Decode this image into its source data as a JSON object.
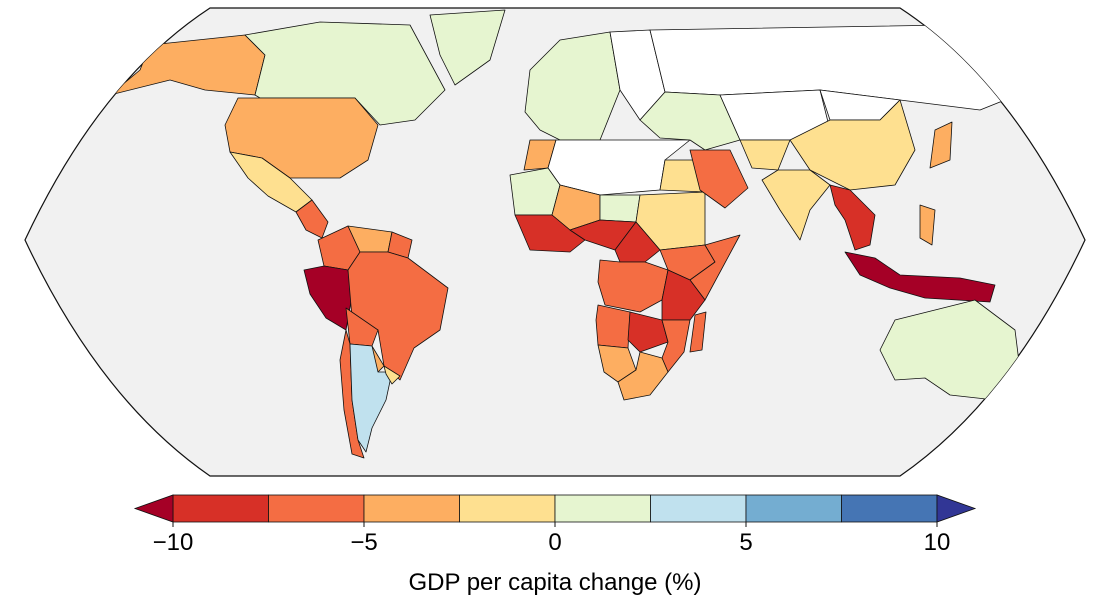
{
  "colors": {
    "ocean": "#f1f1f1",
    "no_data": "#ffffff",
    "border": "#111111"
  },
  "colorbar": {
    "label": "GDP per capita change (%)",
    "min": -10,
    "max": 10,
    "extend": "both",
    "bins": [
      {
        "from": -7.5,
        "to": -10,
        "color": "#d73027",
        "note": "bin -10 to -7.5"
      },
      {
        "from": -7.5,
        "to": -5,
        "color": "#f46d43"
      },
      {
        "from": -5,
        "to": -2.5,
        "color": "#fdae61"
      },
      {
        "from": -2.5,
        "to": 0,
        "color": "#fee090"
      },
      {
        "from": 0,
        "to": 2.5,
        "color": "#e6f5d0"
      },
      {
        "from": 2.5,
        "to": 5,
        "color": "#c0e1ee"
      },
      {
        "from": 5,
        "to": 7.5,
        "color": "#74add1"
      },
      {
        "from": 7.5,
        "to": 10,
        "color": "#4575b4"
      }
    ],
    "under_color": "#a50026",
    "over_color": "#313695",
    "ticks": [
      {
        "value": -10,
        "label": "−10"
      },
      {
        "value": -5,
        "label": "−5"
      },
      {
        "value": 0,
        "label": "0"
      },
      {
        "value": 5,
        "label": "5"
      },
      {
        "value": 10,
        "label": "10"
      }
    ]
  },
  "regions": [
    {
      "name": "Alaska",
      "value": -4
    },
    {
      "name": "Canada",
      "value": 1
    },
    {
      "name": "Greenland",
      "value": 1
    },
    {
      "name": "United States",
      "value": -4
    },
    {
      "name": "Mexico",
      "value": -2
    },
    {
      "name": "Central America",
      "value": -7
    },
    {
      "name": "Colombia",
      "value": -7
    },
    {
      "name": "Venezuela",
      "value": -4
    },
    {
      "name": "Guianas",
      "value": -7
    },
    {
      "name": "Peru",
      "value": -11
    },
    {
      "name": "Brazil",
      "value": -7
    },
    {
      "name": "Bolivia",
      "value": -6
    },
    {
      "name": "Paraguay",
      "value": -4
    },
    {
      "name": "Chile",
      "value": -6
    },
    {
      "name": "Argentina",
      "value": 3
    },
    {
      "name": "Uruguay",
      "value": -1
    },
    {
      "name": "Western Europe",
      "value": 1
    },
    {
      "name": "Eastern Europe",
      "value": null
    },
    {
      "name": "Russia",
      "value": null
    },
    {
      "name": "Morocco",
      "value": -4
    },
    {
      "name": "Sahara",
      "value": null
    },
    {
      "name": "Egypt",
      "value": -2
    },
    {
      "name": "Mauritania",
      "value": 1
    },
    {
      "name": "Mali",
      "value": -4
    },
    {
      "name": "Niger",
      "value": 1
    },
    {
      "name": "Sudan",
      "value": -2
    },
    {
      "name": "West Africa Coast",
      "value": -9
    },
    {
      "name": "Nigeria",
      "value": -8
    },
    {
      "name": "Central Africa",
      "value": -8
    },
    {
      "name": "Ethiopia",
      "value": -6
    },
    {
      "name": "Somalia",
      "value": -6
    },
    {
      "name": "DR Congo",
      "value": -7
    },
    {
      "name": "Kenya Tanzania",
      "value": -9
    },
    {
      "name": "Angola",
      "value": -7
    },
    {
      "name": "Zambia",
      "value": -8
    },
    {
      "name": "Mozambique",
      "value": -7
    },
    {
      "name": "Namibia",
      "value": -4
    },
    {
      "name": "South Africa",
      "value": -4
    },
    {
      "name": "Madagascar",
      "value": -6
    },
    {
      "name": "Middle East",
      "value": 1
    },
    {
      "name": "Saudi Arabia",
      "value": -6
    },
    {
      "name": "Central Asia",
      "value": null
    },
    {
      "name": "Mongolia",
      "value": null
    },
    {
      "name": "China",
      "value": -2
    },
    {
      "name": "India",
      "value": -2
    },
    {
      "name": "Pakistan",
      "value": -2
    },
    {
      "name": "Southeast Asia",
      "value": -8
    },
    {
      "name": "Indonesia",
      "value": -11
    },
    {
      "name": "Philippines",
      "value": -4
    },
    {
      "name": "Japan",
      "value": -4
    },
    {
      "name": "Australia",
      "value": 1
    },
    {
      "name": "New Zealand",
      "value": 1
    }
  ]
}
